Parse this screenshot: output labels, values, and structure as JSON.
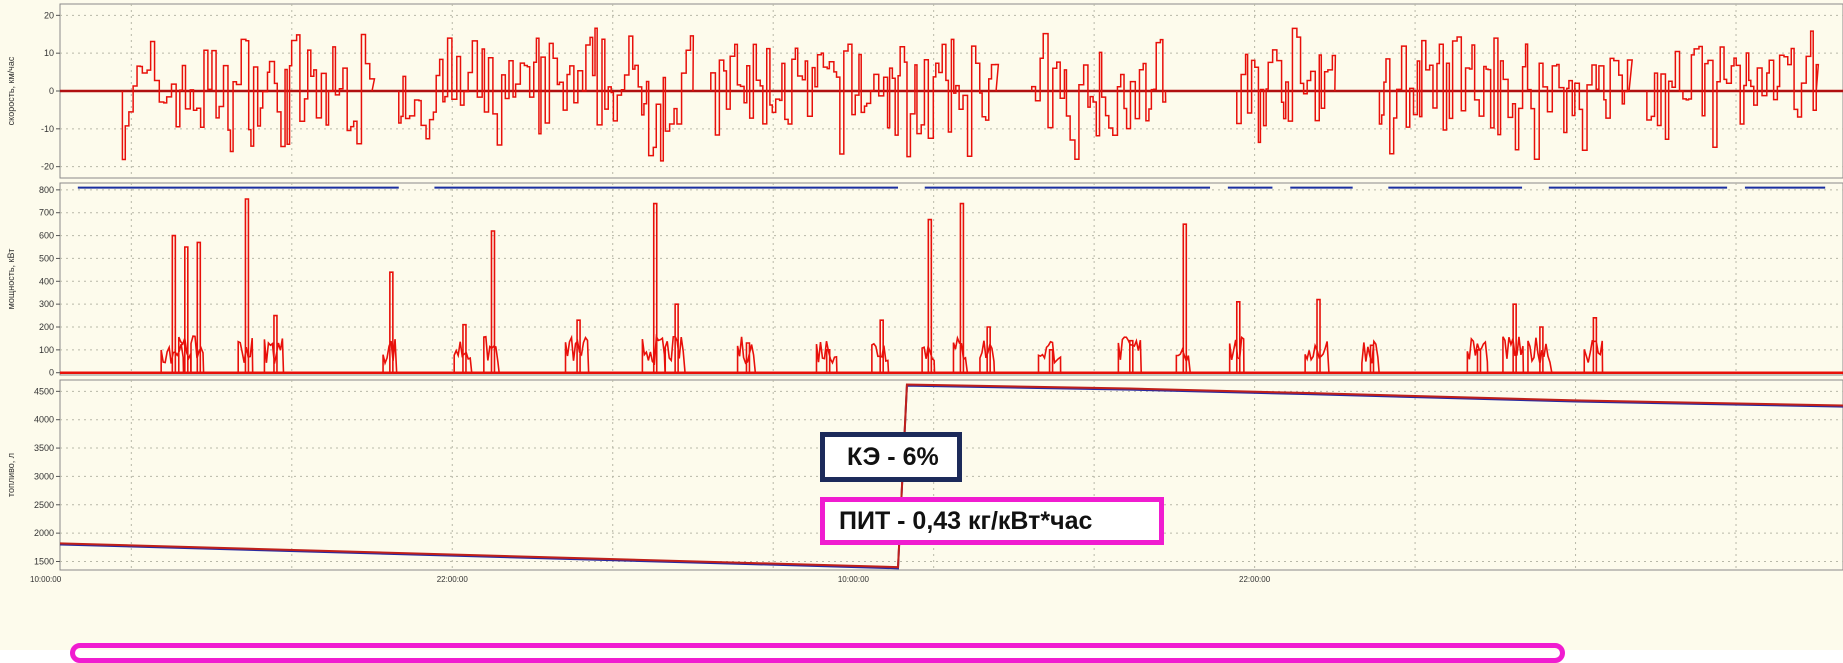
{
  "colors": {
    "plot_bg": "#fdfbec",
    "series_red": "#e8100a",
    "series_dark_red": "#c0201a",
    "series_blue": "#2a2aa0",
    "segment_blue": "#1a2fa0",
    "callout_dark_border": "#1c2a5a",
    "callout_magenta_border": "#f01cd0"
  },
  "annotations": {
    "ke": "КЭ - 6%",
    "pit": "ПИТ - 0,43 кг/кВт*час"
  },
  "chart_data": [
    {
      "type": "line",
      "ylabel": "скорость, км/час",
      "ylim": [
        -23,
        23
      ],
      "yticks": [
        -20,
        -10,
        0,
        10,
        20
      ],
      "grid": true,
      "series": [
        {
          "color": "#e8100a",
          "note": "oscillating speed bursts between about -21 and 21 km/h",
          "active_segments": [
            [
              0.035,
              0.175
            ],
            [
              0.19,
              0.355
            ],
            [
              0.365,
              0.525
            ],
            [
              0.545,
              0.62
            ],
            [
              0.66,
              0.715
            ],
            [
              0.74,
              0.88
            ],
            [
              0.89,
              0.985
            ]
          ],
          "amplitude": 19
        }
      ]
    },
    {
      "type": "line",
      "ylabel": "мощность, кВт",
      "ylim": [
        -10,
        830
      ],
      "yticks": [
        0,
        100,
        200,
        300,
        400,
        500,
        600,
        700,
        800
      ],
      "grid": true,
      "series": [
        {
          "color": "#e8100a",
          "peaks": [
            {
              "x": 0.063,
              "y": 600
            },
            {
              "x": 0.07,
              "y": 550
            },
            {
              "x": 0.077,
              "y": 570
            },
            {
              "x": 0.104,
              "y": 760
            },
            {
              "x": 0.12,
              "y": 250
            },
            {
              "x": 0.185,
              "y": 440
            },
            {
              "x": 0.226,
              "y": 210
            },
            {
              "x": 0.242,
              "y": 620
            },
            {
              "x": 0.29,
              "y": 230
            },
            {
              "x": 0.333,
              "y": 740
            },
            {
              "x": 0.345,
              "y": 300
            },
            {
              "x": 0.385,
              "y": 130
            },
            {
              "x": 0.43,
              "y": 100
            },
            {
              "x": 0.46,
              "y": 230
            },
            {
              "x": 0.487,
              "y": 670
            },
            {
              "x": 0.505,
              "y": 740
            },
            {
              "x": 0.52,
              "y": 200
            },
            {
              "x": 0.555,
              "y": 100
            },
            {
              "x": 0.6,
              "y": 140
            },
            {
              "x": 0.63,
              "y": 650
            },
            {
              "x": 0.66,
              "y": 310
            },
            {
              "x": 0.705,
              "y": 320
            },
            {
              "x": 0.735,
              "y": 120
            },
            {
              "x": 0.795,
              "y": 100
            },
            {
              "x": 0.815,
              "y": 300
            },
            {
              "x": 0.83,
              "y": 200
            },
            {
              "x": 0.86,
              "y": 240
            }
          ]
        }
      ],
      "markers": {
        "color": "#1a2fa0",
        "value": 810,
        "segments": [
          [
            0.01,
            0.19
          ],
          [
            0.21,
            0.47
          ],
          [
            0.485,
            0.645
          ],
          [
            0.655,
            0.68
          ],
          [
            0.69,
            0.725
          ],
          [
            0.745,
            0.82
          ],
          [
            0.835,
            0.935
          ],
          [
            0.945,
            0.99
          ]
        ]
      }
    },
    {
      "type": "line",
      "ylabel": "топливо, л",
      "ylim": [
        1350,
        4700
      ],
      "yticks": [
        1500,
        2000,
        2500,
        3000,
        3500,
        4000,
        4500
      ],
      "grid": true,
      "series": [
        {
          "color": "#2a2aa0",
          "points": [
            [
              0,
              1800
            ],
            [
              0.47,
              1380
            ],
            [
              0.475,
              4600
            ],
            [
              0.6,
              4530
            ],
            [
              0.7,
              4450
            ],
            [
              0.85,
              4320
            ],
            [
              1,
              4230
            ]
          ]
        },
        {
          "color": "#c0201a",
          "points": [
            [
              0,
              1820
            ],
            [
              0.47,
              1400
            ],
            [
              0.475,
              4620
            ],
            [
              0.6,
              4550
            ],
            [
              0.7,
              4470
            ],
            [
              0.85,
              4340
            ],
            [
              1,
              4250
            ]
          ]
        }
      ]
    }
  ],
  "x_axis": {
    "tick_labels": [
      "10:00:00",
      "22:00:00",
      "10:00:00",
      "22:00:00"
    ]
  }
}
